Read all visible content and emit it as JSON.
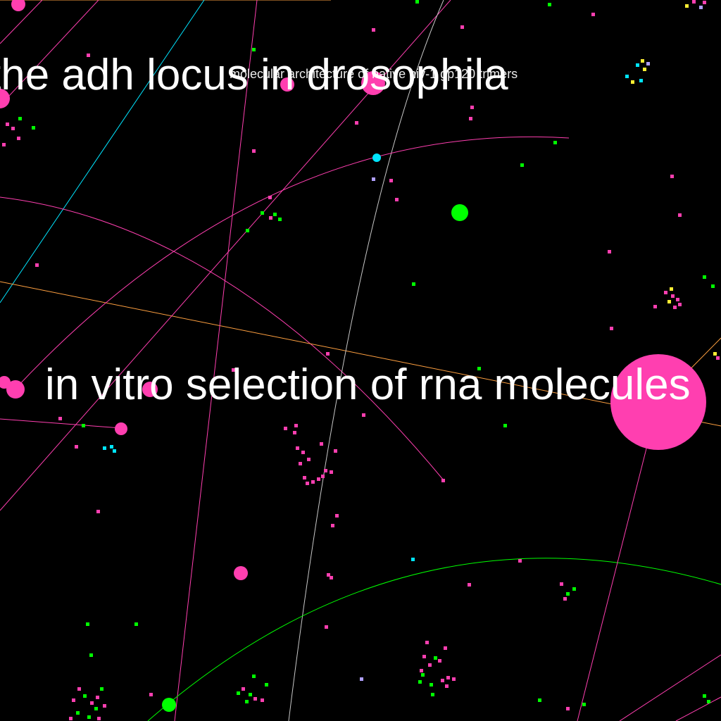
{
  "labels": {
    "top": "the adh locus in drosophila",
    "top_overlay": "molecular architecture of native hiv-1 gp120 trimers",
    "middle": "in vitro selection of rna molecules"
  },
  "colors": {
    "background": "#000000",
    "text": "#ffffff",
    "magenta": "#ff3fb0",
    "green": "#00ff00",
    "cyan": "#00e5ff",
    "orange": "#ffa040",
    "yellow": "#ffee33",
    "lavender": "#b0a0ff",
    "grey": "#c8c8c8"
  }
}
